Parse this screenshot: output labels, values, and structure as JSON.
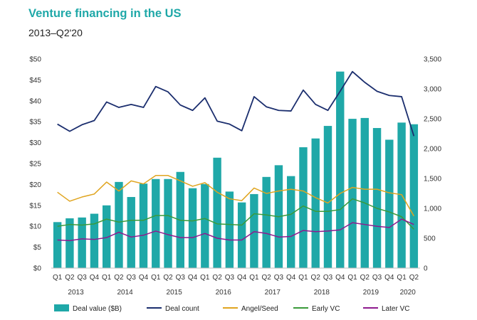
{
  "header": {
    "title": "Venture financing in the US",
    "subtitle": "2013–Q2'20"
  },
  "chart_data": {
    "type": "bar",
    "title": "Venture financing in the US",
    "subtitle": "2013–Q2'20",
    "categories": [
      "Q1",
      "Q2",
      "Q3",
      "Q4",
      "Q1",
      "Q2",
      "Q3",
      "Q4",
      "Q1",
      "Q2",
      "Q3",
      "Q4",
      "Q1",
      "Q2",
      "Q3",
      "Q4",
      "Q1",
      "Q2",
      "Q3",
      "Q4",
      "Q1",
      "Q2",
      "Q3",
      "Q4",
      "Q1",
      "Q2",
      "Q3",
      "Q4",
      "Q1",
      "Q2"
    ],
    "years": [
      "2013",
      "2014",
      "2015",
      "2016",
      "2017",
      "2018",
      "2019",
      "2020"
    ],
    "left_axis": {
      "ylim": [
        0,
        50
      ],
      "ticks": [
        "$0",
        "$5",
        "$10",
        "$15",
        "$20",
        "$25",
        "$30",
        "$35",
        "$40",
        "$45",
        "$50"
      ]
    },
    "right_axis": {
      "ylim": [
        0,
        3500
      ],
      "ticks": [
        "0",
        "500",
        "1,000",
        "1,500",
        "2,000",
        "2,500",
        "3,000",
        "3,500"
      ]
    },
    "series": [
      {
        "name": "Deal value ($B)",
        "type": "bar",
        "axis": "left",
        "color": "#1fa8a8",
        "values": [
          11,
          11.9,
          12.1,
          13,
          15,
          20.6,
          17,
          20.2,
          21.3,
          21.3,
          23,
          19.1,
          20.1,
          26.4,
          18.3,
          15.7,
          17.7,
          21.8,
          24.6,
          22,
          28.9,
          31,
          34,
          47,
          35.7,
          35.9,
          33.5,
          30.7,
          34.8,
          34.4
        ]
      },
      {
        "name": "Deal count",
        "type": "line",
        "axis": "right",
        "color": "#1b2e6e",
        "values": [
          2410,
          2290,
          2400,
          2470,
          2780,
          2690,
          2740,
          2690,
          3040,
          2950,
          2730,
          2640,
          2850,
          2460,
          2410,
          2300,
          2870,
          2700,
          2640,
          2630,
          2980,
          2740,
          2640,
          2960,
          3290,
          3110,
          2960,
          2890,
          2870,
          2210
        ]
      },
      {
        "name": "Angel/Seed",
        "type": "line",
        "axis": "right",
        "color": "#e0a520",
        "values": [
          1270,
          1120,
          1190,
          1240,
          1440,
          1290,
          1460,
          1410,
          1550,
          1550,
          1460,
          1370,
          1430,
          1270,
          1160,
          1130,
          1340,
          1250,
          1290,
          1320,
          1290,
          1180,
          1090,
          1250,
          1350,
          1320,
          1320,
          1260,
          1230,
          870
        ]
      },
      {
        "name": "Early VC",
        "type": "line",
        "axis": "right",
        "color": "#3a9a3a",
        "values": [
          700,
          730,
          720,
          740,
          820,
          770,
          800,
          800,
          880,
          880,
          800,
          790,
          830,
          740,
          730,
          720,
          910,
          890,
          860,
          900,
          1040,
          950,
          950,
          980,
          1160,
          1090,
          1000,
          940,
          860,
          650
        ]
      },
      {
        "name": "Later VC",
        "type": "line",
        "axis": "right",
        "color": "#8e1a8e",
        "values": [
          470,
          460,
          490,
          480,
          510,
          600,
          520,
          550,
          620,
          560,
          510,
          510,
          580,
          500,
          470,
          470,
          610,
          580,
          520,
          530,
          630,
          610,
          620,
          640,
          760,
          730,
          700,
          680,
          820,
          730
        ]
      }
    ],
    "legend": {
      "position": "bottom",
      "items": [
        "Deal value ($B)",
        "Deal count",
        "Angel/Seed",
        "Early VC",
        "Later VC"
      ]
    }
  }
}
